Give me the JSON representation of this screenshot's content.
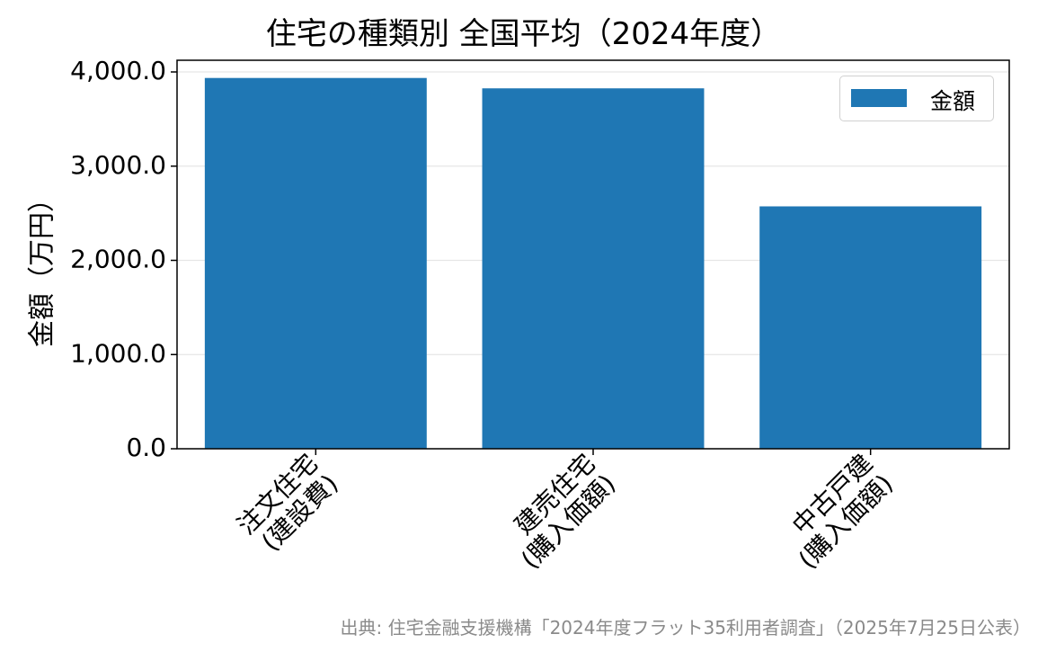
{
  "chart_data": {
    "type": "bar",
    "title": "住宅の種類別 全国平均（2024年度）",
    "ylabel": "金額（万円）",
    "xlabel": "",
    "categories": [
      "注文住宅\n(建設費)",
      "建売住宅\n(購入価額)",
      "中古戸建\n(購入価額)"
    ],
    "series": [
      {
        "name": "金額",
        "values": [
          3936,
          3826,
          2573
        ],
        "color": "#1f77b4"
      }
    ],
    "ylim": [
      0,
      4000
    ],
    "yticks": [
      0,
      1000,
      2000,
      3000,
      4000
    ],
    "ytick_labels": [
      "0.0",
      "1,000.0",
      "2,000.0",
      "3,000.0",
      "4,000.0"
    ],
    "grid": "horizontal",
    "legend": "top-right",
    "source": "出典: 住宅金融支援機構「2024年度フラット35利用者調査」（2025年7月25日公表）"
  }
}
